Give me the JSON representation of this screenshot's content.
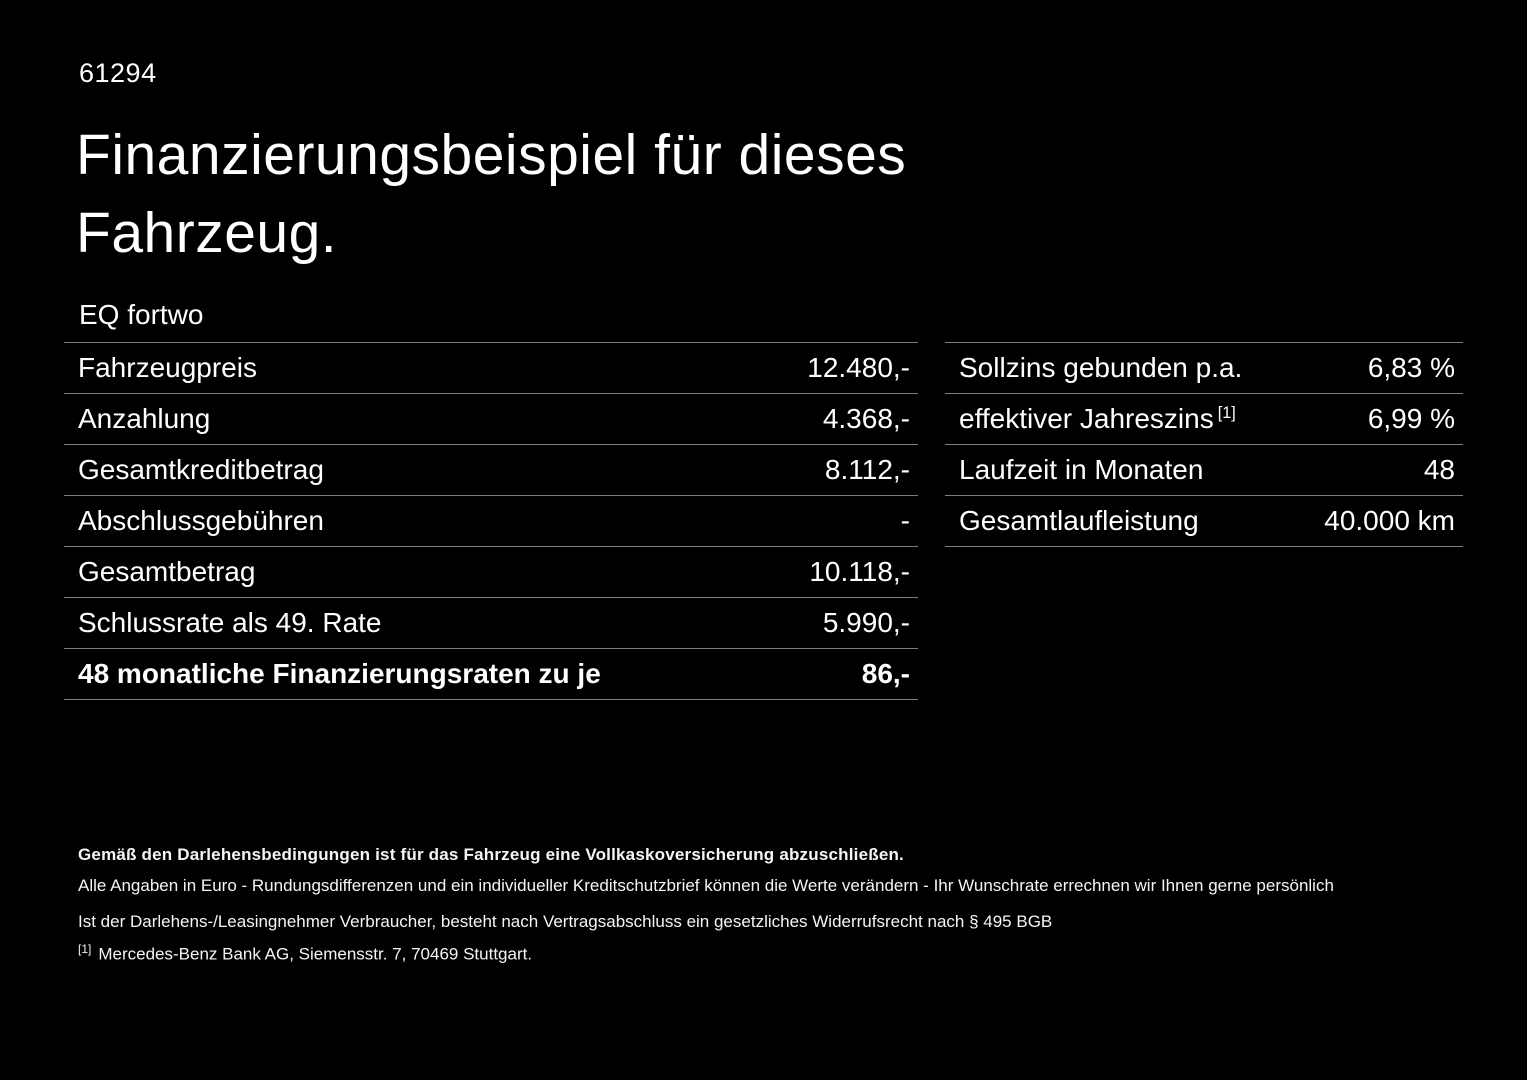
{
  "page": {
    "background_color": "#000000",
    "text_color": "#ffffff",
    "divider_color": "#7d7d7d"
  },
  "header": {
    "ref_number": "61294",
    "title": "Finanzierungsbeispiel für dieses Fahrzeug.",
    "title_lines": [
      "Finanzierungsbeispiel für dieses",
      "Fahrzeug."
    ],
    "model": "EQ fortwo"
  },
  "finance_table": {
    "rows": [
      {
        "label": "Fahrzeugpreis",
        "value": "12.480,-"
      },
      {
        "label": "Anzahlung",
        "value": "4.368,-"
      },
      {
        "label": "Gesamtkreditbetrag",
        "value": "8.112,-"
      },
      {
        "label": "Abschlussgebühren",
        "value": "-"
      },
      {
        "label": "Gesamtbetrag",
        "value": "10.118,-"
      },
      {
        "label": "Schlussrate als 49. Rate",
        "value": "5.990,-"
      },
      {
        "label": "48 monatliche Finanzierungsraten zu je",
        "value": "86,-",
        "bold": true
      }
    ]
  },
  "conditions_table": {
    "rows": [
      {
        "label": "Sollzins gebunden p.a.",
        "value": "6,83 %"
      },
      {
        "label": "effektiver Jahreszins",
        "footnote_marker": "[1]",
        "value": "6,99 %"
      },
      {
        "label": "Laufzeit in Monaten",
        "value": "48"
      },
      {
        "label": "Gesamtlaufleistung",
        "value": "40.000 km"
      }
    ]
  },
  "footer": {
    "bold_note": "Gemäß den Darlehensbedingungen ist für das Fahrzeug eine Vollkaskoversicherung abzuschließen.",
    "note_line1": "Alle Angaben in Euro - Rundungsdifferenzen und ein individueller Kreditschutzbrief können die Werte verändern - Ihr Wunschrate errechnen wir Ihnen gerne persönlich",
    "note_line2": "Ist der Darlehens-/Leasingnehmer Verbraucher, besteht nach Vertragsabschluss ein gesetzliches Widerrufsrecht nach § 495 BGB",
    "footnote_marker": "[1]",
    "footnote_text": "Mercedes-Benz Bank AG, Siemensstr. 7, 70469 Stuttgart."
  }
}
